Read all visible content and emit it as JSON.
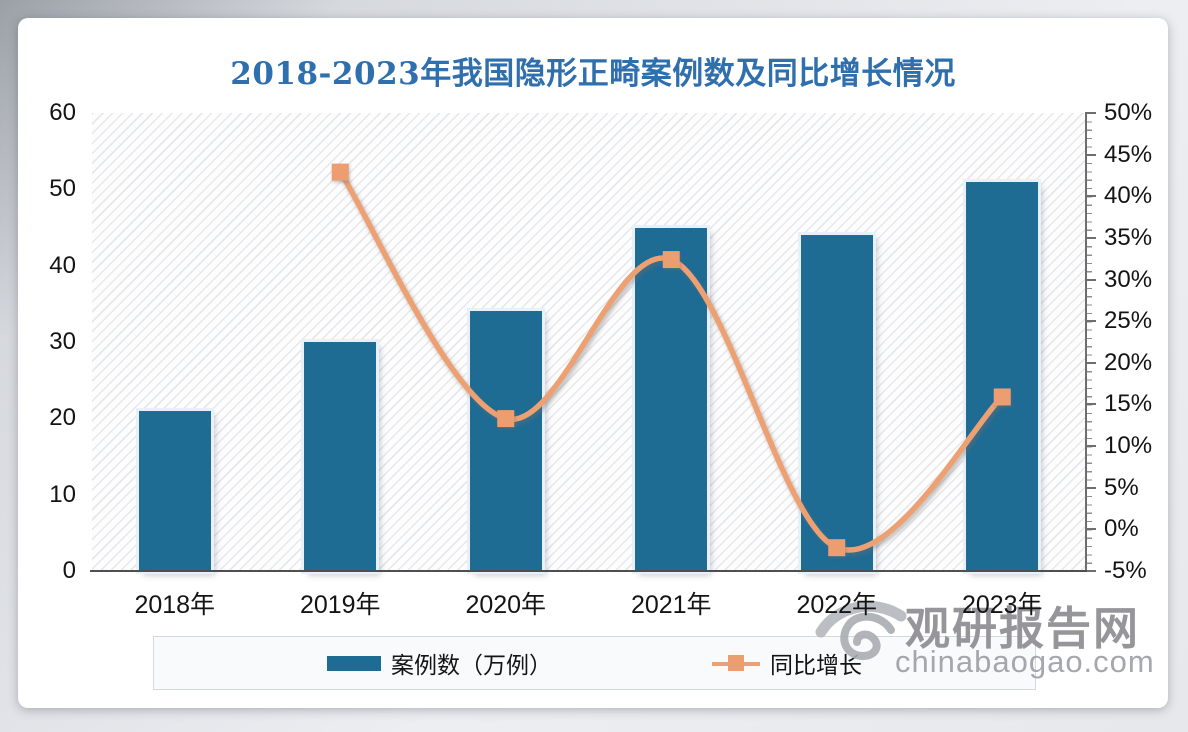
{
  "page": {
    "title": "2018-2023年我国隐形正畸案例数及同比增长情况"
  },
  "chart_data": {
    "type": "combo",
    "title": "2018-2023年我国隐形正畸案例数及同比增长情况",
    "categories": [
      "2018年",
      "2019年",
      "2020年",
      "2021年",
      "2022年",
      "2023年"
    ],
    "series": [
      {
        "name": "案例数（万例）",
        "type": "bar",
        "axis": "left",
        "unit": "万例",
        "color": "#1e6b94",
        "values": [
          21,
          30,
          34,
          45,
          44,
          51
        ]
      },
      {
        "name": "同比增长",
        "type": "line",
        "axis": "right",
        "unit": "%",
        "color": "#eda173",
        "values": [
          null,
          42.9,
          13.3,
          32.4,
          -2.2,
          15.9
        ]
      }
    ],
    "left_axis": {
      "min": 0,
      "max": 60,
      "step": 10,
      "tick_labels_top_to_bottom": [
        "60",
        "50",
        "40",
        "30",
        "20",
        "10",
        "0"
      ]
    },
    "right_axis": {
      "min": -5,
      "max": 50,
      "step": 5,
      "tick_labels_top_to_bottom": [
        "50%",
        "45%",
        "40%",
        "35%",
        "30%",
        "25%",
        "20%",
        "15%",
        "10%",
        "5%",
        "0%",
        "-5%"
      ]
    },
    "legend_position": "bottom",
    "grid": "none (hatched plot background)"
  },
  "legend": {
    "items": [
      {
        "label": "案例数（万例）",
        "swatch": "bar"
      },
      {
        "label": "同比增长",
        "swatch": "line-square-marker"
      }
    ]
  },
  "watermark": {
    "name": "观研报告网",
    "domain": "chinabaogao.com"
  },
  "colors": {
    "title": "#2f6fad",
    "bar": "#1e6b94",
    "bar_outline": "#e7f1f7",
    "line": "#eda173",
    "marker": "#ec9e71",
    "axis": "#6e6e6e",
    "watermark": "#96969a"
  }
}
